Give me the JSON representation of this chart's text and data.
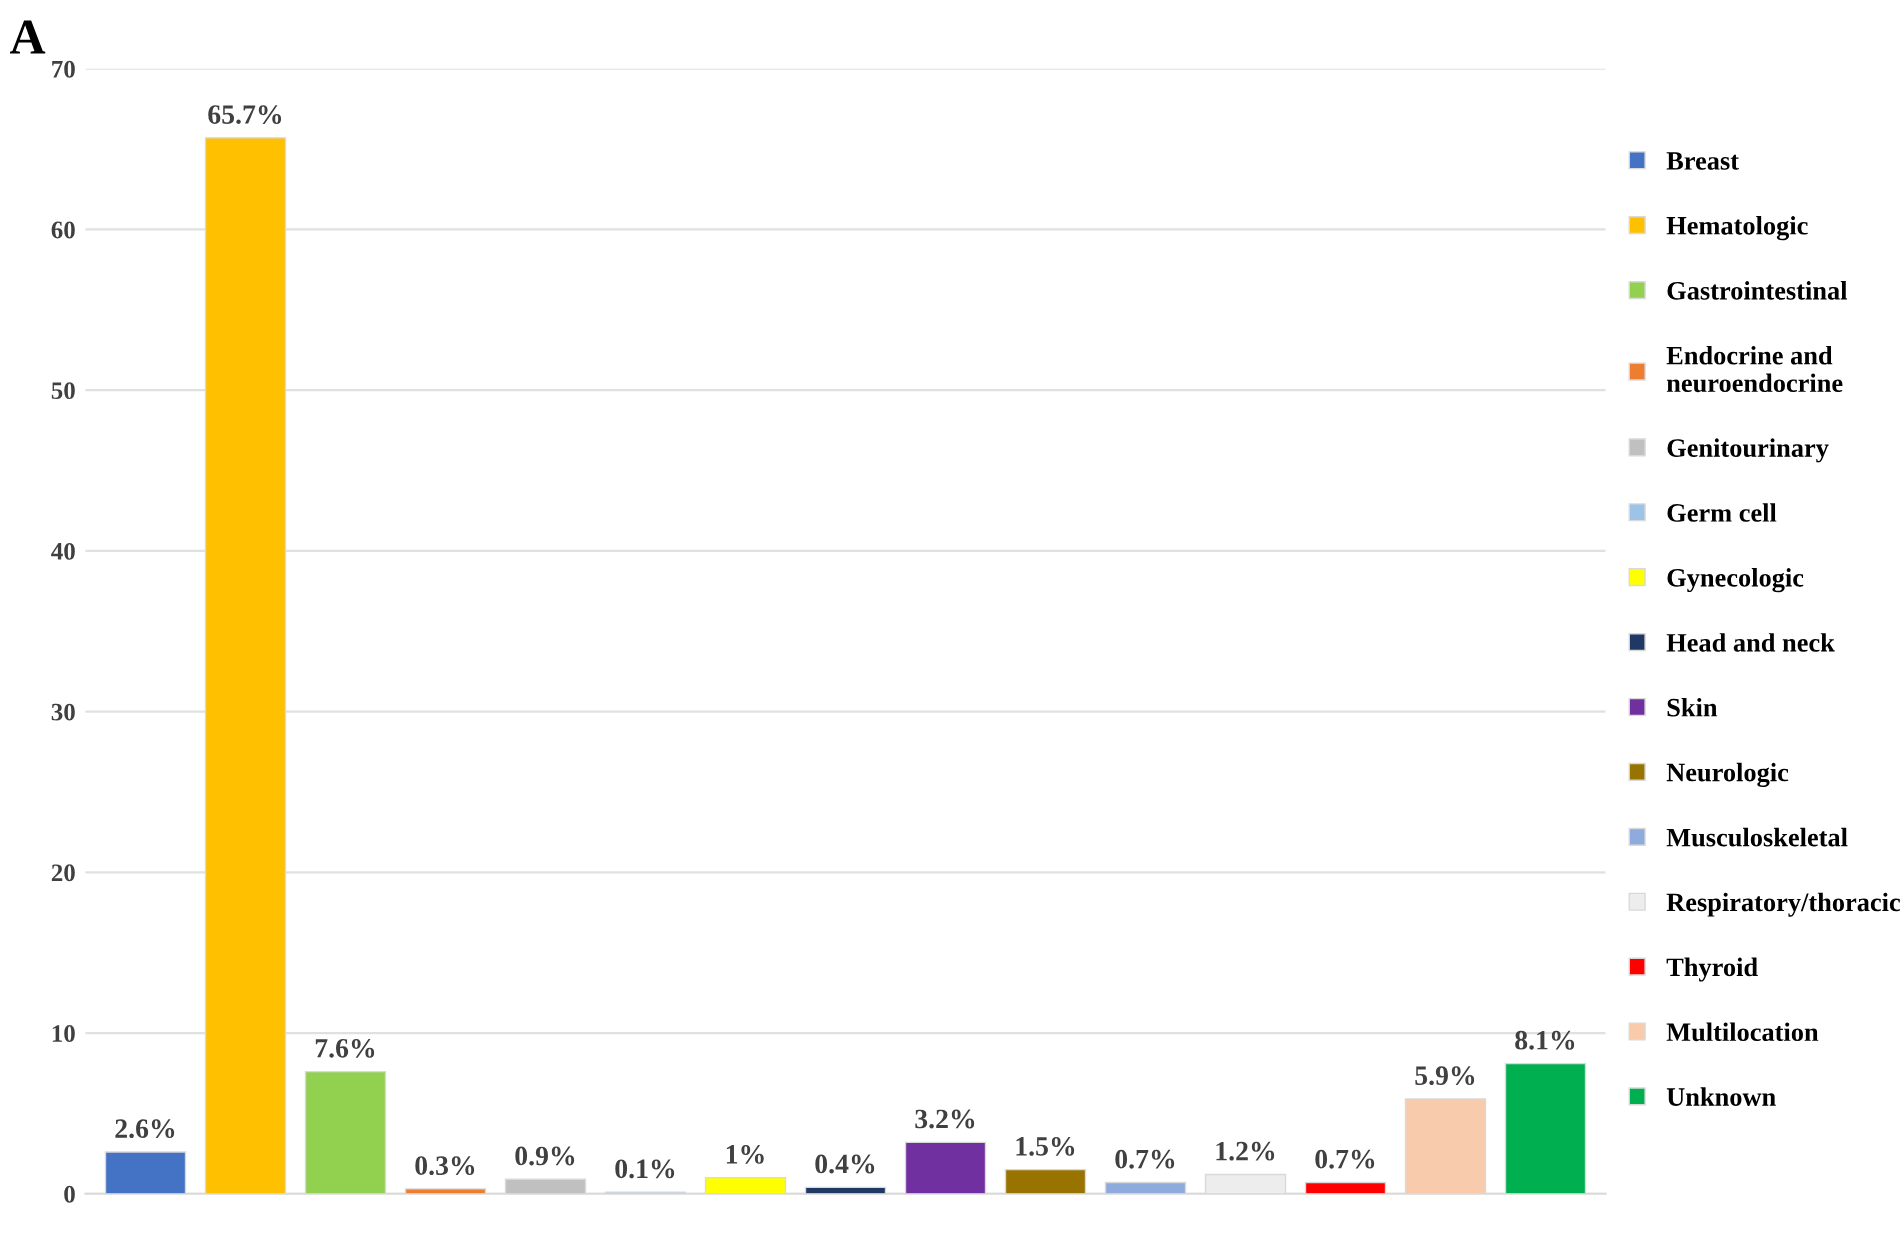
{
  "chart_data": {
    "type": "bar",
    "categories": [
      null,
      null,
      null,
      null,
      null,
      null,
      null,
      null,
      null,
      null,
      null,
      null,
      null,
      null,
      null
    ],
    "series": [
      {
        "name": "Breast",
        "color": "#4472c4",
        "values": [
          2.6,
          null,
          null,
          null,
          null,
          null,
          null,
          null,
          null,
          null,
          null,
          null,
          null,
          null,
          null
        ],
        "value_labels": [
          "2.6%",
          null,
          null,
          null,
          null,
          null,
          null,
          null,
          null,
          null,
          null,
          null,
          null,
          null,
          null
        ]
      },
      {
        "name": "Hematologic",
        "color": "#ffc000",
        "values": [
          null,
          65.7,
          null,
          null,
          null,
          null,
          null,
          null,
          null,
          null,
          null,
          null,
          null,
          null,
          null
        ],
        "value_labels": [
          null,
          "65.7%",
          null,
          null,
          null,
          null,
          null,
          null,
          null,
          null,
          null,
          null,
          null,
          null,
          null
        ]
      },
      {
        "name": "Gastrointestinal",
        "color": "#92d050",
        "values": [
          null,
          null,
          7.6,
          null,
          null,
          null,
          null,
          null,
          null,
          null,
          null,
          null,
          null,
          null,
          null
        ],
        "value_labels": [
          null,
          null,
          "7.6%",
          null,
          null,
          null,
          null,
          null,
          null,
          null,
          null,
          null,
          null,
          null,
          null
        ]
      },
      {
        "name": "Endocrine and\nneuroendocrine",
        "color": "#ed7d31",
        "values": [
          null,
          null,
          null,
          0.3,
          null,
          null,
          null,
          null,
          null,
          null,
          null,
          null,
          null,
          null,
          null
        ],
        "value_labels": [
          null,
          null,
          null,
          "0.3%",
          null,
          null,
          null,
          null,
          null,
          null,
          null,
          null,
          null,
          null,
          null
        ]
      },
      {
        "name": "Genitourinary",
        "color": "#c0c0c0",
        "values": [
          null,
          null,
          null,
          null,
          0.9,
          null,
          null,
          null,
          null,
          null,
          null,
          null,
          null,
          null,
          null
        ],
        "value_labels": [
          null,
          null,
          null,
          null,
          "0.9%",
          null,
          null,
          null,
          null,
          null,
          null,
          null,
          null,
          null,
          null
        ]
      },
      {
        "name": "Germ cell",
        "color": "#9dc3e6",
        "values": [
          null,
          null,
          null,
          null,
          null,
          0.1,
          null,
          null,
          null,
          null,
          null,
          null,
          null,
          null,
          null
        ],
        "value_labels": [
          null,
          null,
          null,
          null,
          null,
          "0.1%",
          null,
          null,
          null,
          null,
          null,
          null,
          null,
          null,
          null
        ]
      },
      {
        "name": "Gynecologic",
        "color": "#ffff00",
        "values": [
          null,
          null,
          null,
          null,
          null,
          null,
          1,
          null,
          null,
          null,
          null,
          null,
          null,
          null,
          null
        ],
        "value_labels": [
          null,
          null,
          null,
          null,
          null,
          null,
          "1%",
          null,
          null,
          null,
          null,
          null,
          null,
          null,
          null
        ]
      },
      {
        "name": "Head and neck",
        "color": "#203864",
        "values": [
          null,
          null,
          null,
          null,
          null,
          null,
          null,
          0.4,
          null,
          null,
          null,
          null,
          null,
          null,
          null
        ],
        "value_labels": [
          null,
          null,
          null,
          null,
          null,
          null,
          null,
          "0.4%",
          null,
          null,
          null,
          null,
          null,
          null,
          null
        ]
      },
      {
        "name": "Skin",
        "color": "#7030a0",
        "values": [
          null,
          null,
          null,
          null,
          null,
          null,
          null,
          null,
          3.2,
          null,
          null,
          null,
          null,
          null,
          null
        ],
        "value_labels": [
          null,
          null,
          null,
          null,
          null,
          null,
          null,
          null,
          "3.2%",
          null,
          null,
          null,
          null,
          null,
          null
        ]
      },
      {
        "name": "Neurologic",
        "color": "#997300",
        "values": [
          null,
          null,
          null,
          null,
          null,
          null,
          null,
          null,
          null,
          1.5,
          null,
          null,
          null,
          null,
          null
        ],
        "value_labels": [
          null,
          null,
          null,
          null,
          null,
          null,
          null,
          null,
          null,
          "1.5%",
          null,
          null,
          null,
          null,
          null
        ]
      },
      {
        "name": "Musculoskeletal",
        "color": "#8faadc",
        "values": [
          null,
          null,
          null,
          null,
          null,
          null,
          null,
          null,
          null,
          null,
          0.7,
          null,
          null,
          null,
          null
        ],
        "value_labels": [
          null,
          null,
          null,
          null,
          null,
          null,
          null,
          null,
          null,
          null,
          "0.7%",
          null,
          null,
          null,
          null
        ]
      },
      {
        "name": "Respiratory/thoracic",
        "color": "#ededed",
        "values": [
          null,
          null,
          null,
          null,
          null,
          null,
          null,
          null,
          null,
          null,
          null,
          1.2,
          null,
          null,
          null
        ],
        "value_labels": [
          null,
          null,
          null,
          null,
          null,
          null,
          null,
          null,
          null,
          null,
          null,
          "1.2%",
          null,
          null,
          null
        ]
      },
      {
        "name": "Thyroid",
        "color": "#ff0000",
        "values": [
          null,
          null,
          null,
          null,
          null,
          null,
          null,
          null,
          null,
          null,
          null,
          null,
          0.7,
          null,
          null
        ],
        "value_labels": [
          null,
          null,
          null,
          null,
          null,
          null,
          null,
          null,
          null,
          null,
          null,
          null,
          "0.7%",
          null,
          null
        ]
      },
      {
        "name": "Multilocation",
        "color": "#f8cbad",
        "values": [
          null,
          null,
          null,
          null,
          null,
          null,
          null,
          null,
          null,
          null,
          null,
          null,
          null,
          5.9,
          null
        ],
        "value_labels": [
          null,
          null,
          null,
          null,
          null,
          null,
          null,
          null,
          null,
          null,
          null,
          null,
          null,
          "5.9%",
          null
        ]
      },
      {
        "name": "Unknown",
        "color": "#00b050",
        "values": [
          null,
          null,
          null,
          null,
          null,
          null,
          null,
          null,
          null,
          null,
          null,
          null,
          null,
          null,
          8.1
        ],
        "value_labels": [
          null,
          null,
          null,
          null,
          null,
          null,
          null,
          null,
          null,
          null,
          null,
          null,
          null,
          null,
          "8.1%"
        ]
      }
    ],
    "ylim": [
      0,
      70
    ],
    "yticks": [
      0,
      10,
      20,
      30,
      40,
      50,
      60,
      70
    ],
    "grid": "y",
    "legend": "right",
    "tick_labels": "y",
    "annotations": [
      "A"
    ]
  }
}
